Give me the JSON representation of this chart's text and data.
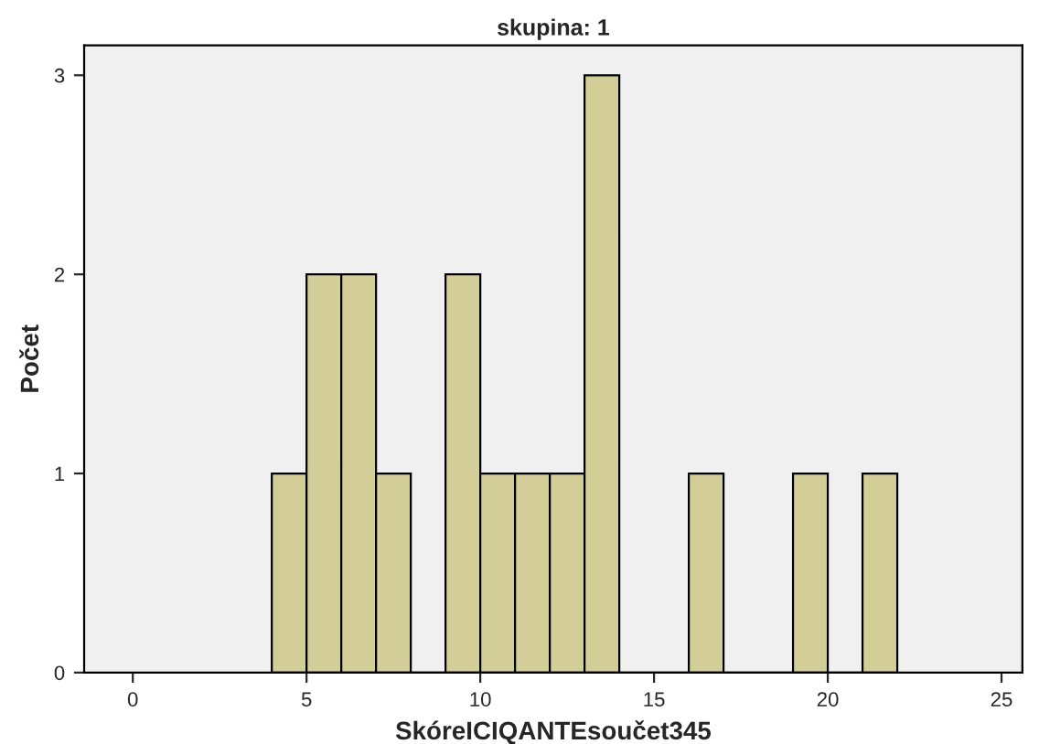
{
  "chart_data": {
    "type": "histogram",
    "title": "skupina: 1",
    "xlabel": "SkóreICIQANTEsoučet345",
    "ylabel": "Počet",
    "bins": [
      4,
      5,
      6,
      7,
      8,
      9,
      10,
      11,
      12,
      13,
      14,
      15,
      16,
      17,
      18,
      19,
      20,
      21,
      22
    ],
    "values": [
      1,
      2,
      2,
      1,
      0,
      2,
      1,
      1,
      1,
      3,
      0,
      0,
      1,
      0,
      0,
      1,
      0,
      1
    ],
    "color": "#d3ce97",
    "xlim": [
      -1.4,
      25.6
    ],
    "xticks": [
      0,
      5,
      10,
      15,
      20,
      25
    ],
    "ylim": [
      0,
      3.15
    ],
    "yticks": [
      0,
      1,
      2,
      3
    ],
    "grid": false,
    "legend": false
  }
}
